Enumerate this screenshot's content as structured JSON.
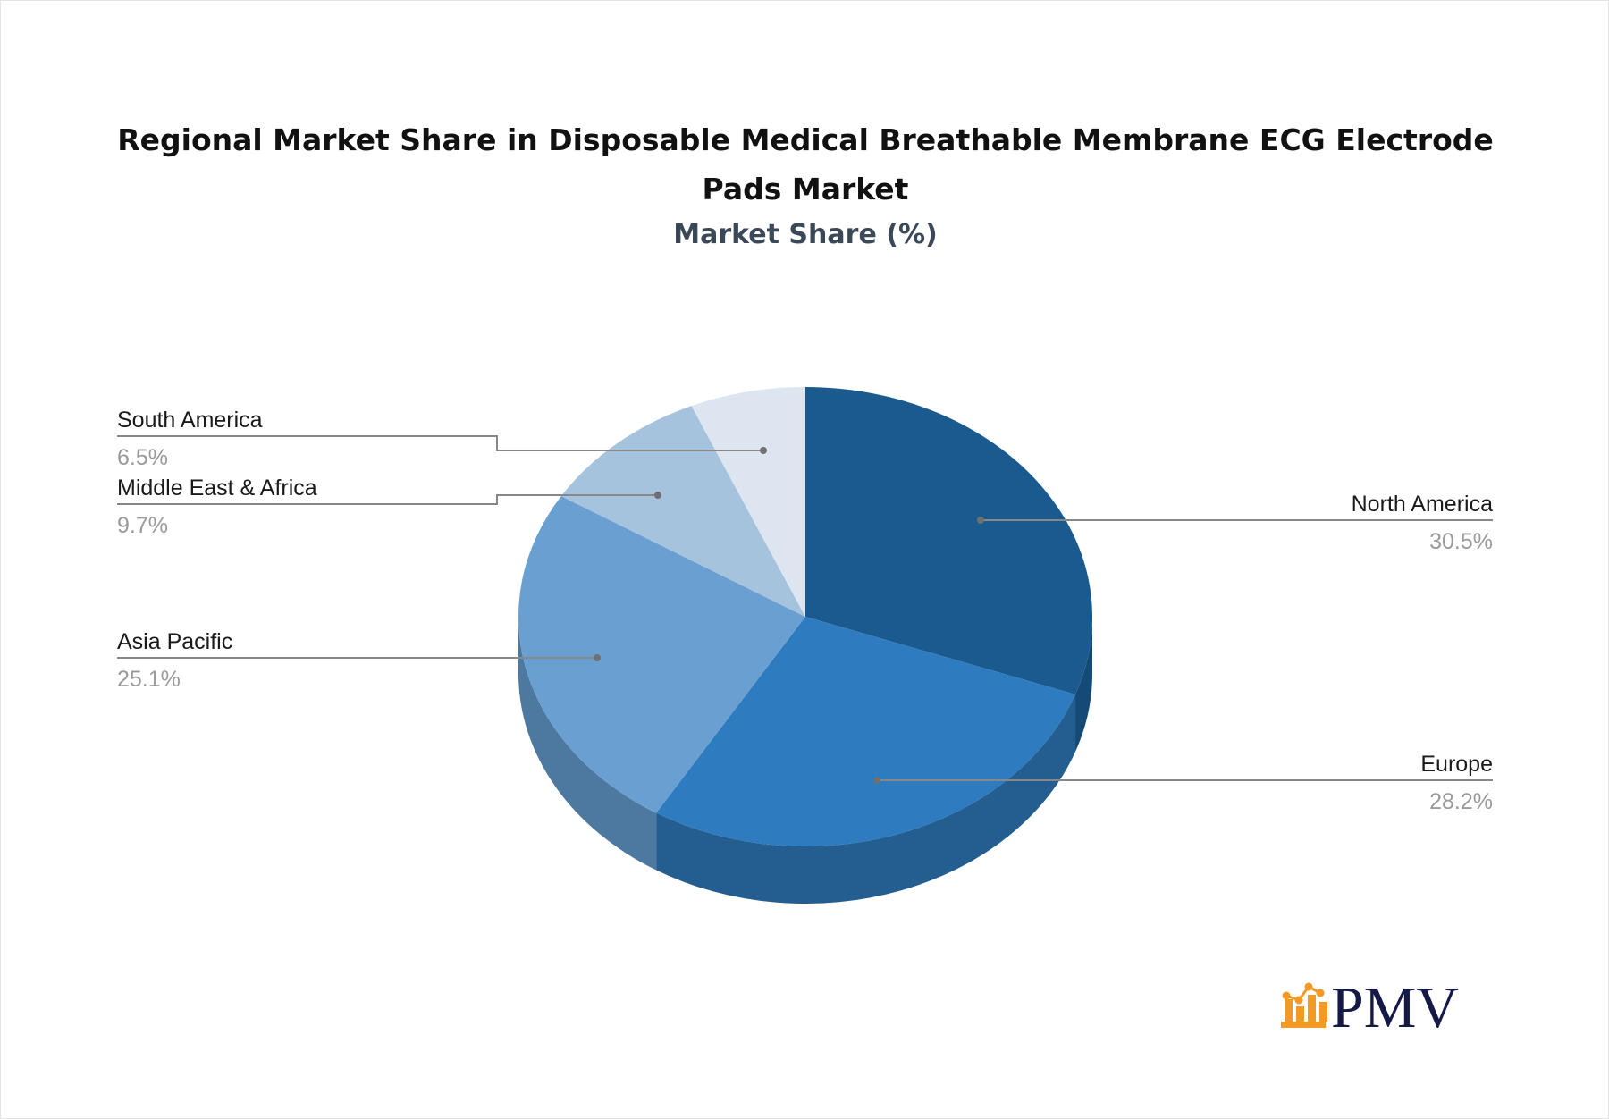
{
  "chart_data": {
    "type": "pie",
    "title": "Regional Market Share in Disposable Medical Breathable Membrane ECG Electrode Pads Market",
    "subtitle": "Market Share (%)",
    "slices": [
      {
        "label": "North America",
        "value": 30.5,
        "value_label": "30.5%",
        "color": "#1a5a8f",
        "side_color": "#154a76"
      },
      {
        "label": "Europe",
        "value": 28.2,
        "value_label": "28.2%",
        "color": "#2e7bbf",
        "side_color": "#245d8f"
      },
      {
        "label": "Asia Pacific",
        "value": 25.1,
        "value_label": "25.1%",
        "color": "#6aa0d1",
        "side_color": "#4d789f"
      },
      {
        "label": "Middle East & Africa",
        "value": 9.7,
        "value_label": "9.7%",
        "color": "#a6c3de",
        "side_color": "#8aa5bf"
      },
      {
        "label": "South America",
        "value": 6.5,
        "value_label": "6.5%",
        "color": "#dde6f0",
        "side_color": "#bcc6d2"
      }
    ],
    "style": "3d-pie",
    "legend": "none (leader-line labels)"
  },
  "logo": {
    "text": "PMV",
    "icon": "bar-chart-trend-icon",
    "icon_color": "#f39a25",
    "text_color": "#141a45"
  }
}
